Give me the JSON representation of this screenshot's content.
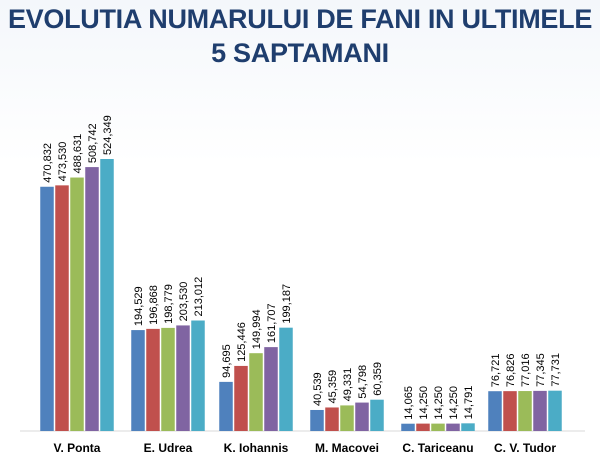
{
  "header": {
    "title_line1": "EVOLUTIA NUMARULUI DE FANI IN ULTIMELE",
    "title_line2": "5 SAPTAMANI"
  },
  "colors": {
    "title": "#1f3e6e",
    "series": [
      "#4f81bd",
      "#c0504d",
      "#9bbb59",
      "#8064a2",
      "#4bacc6"
    ]
  },
  "chart_data": {
    "type": "bar",
    "title": "EVOLUTIA NUMARULUI DE FANI IN ULTIMELE 5 SAPTAMANI",
    "categories": [
      "V. Ponta",
      "E. Udrea",
      "K. Iohannis",
      "M. Macovei",
      "C. Tariceanu",
      "C. V. Tudor"
    ],
    "series": [
      {
        "values": [
          470832,
          194529,
          94695,
          40539,
          14065,
          76721
        ],
        "labels": [
          "470,832",
          "194,529",
          "94,695",
          "40,539",
          "14,065",
          "76,721"
        ]
      },
      {
        "values": [
          473530,
          196868,
          125446,
          45359,
          14250,
          76826
        ],
        "labels": [
          "473,530",
          "196,868",
          "125,446",
          "45,359",
          "14,250",
          "76,826"
        ]
      },
      {
        "values": [
          488631,
          198779,
          149994,
          49331,
          14250,
          77016
        ],
        "labels": [
          "488,631",
          "198,779",
          "149,994",
          "49,331",
          "14,250",
          "77,016"
        ]
      },
      {
        "values": [
          508742,
          203530,
          161707,
          54798,
          14250,
          77345
        ],
        "labels": [
          "508,742",
          "203,530",
          "161,707",
          "54,798",
          "14,250",
          "77,345"
        ]
      },
      {
        "values": [
          524349,
          213012,
          199187,
          60359,
          14791,
          77731
        ],
        "labels": [
          "524,349",
          "213,012",
          "199,187",
          "60,359",
          "14,791",
          "77,731"
        ]
      }
    ],
    "ylim": [
      0,
      600000
    ],
    "grid": false,
    "legend": "none",
    "xlabel": "",
    "ylabel": ""
  }
}
